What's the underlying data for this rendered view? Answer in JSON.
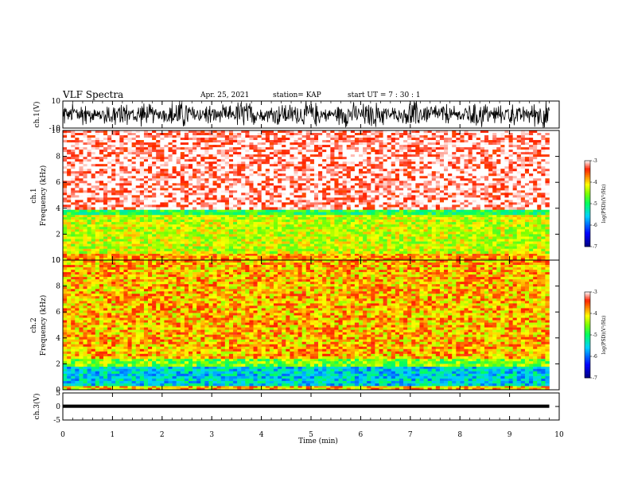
{
  "header": {
    "title": "VLF Spectra",
    "date": "Apr. 25, 2021",
    "station": "station= KAP",
    "start_time": "start  UT  =   7 : 30 : 1"
  },
  "chart_data": [
    {
      "type": "line",
      "panel": "ch1-waveform",
      "ylabel": "ch.1(V)",
      "ylim": [
        -10,
        10
      ],
      "yticks": [
        "10",
        "-10"
      ],
      "xlim": [
        0,
        10
      ],
      "series_color": "#000000",
      "description_values": {
        "signal_min": -10,
        "signal_max": 10
      }
    },
    {
      "type": "heatmap",
      "panel": "ch1-spectrogram",
      "ylabel": "ch.1\nFrequency (kHz)",
      "ylim": [
        0,
        10
      ],
      "yticks": [
        "0",
        "2",
        "4",
        "6",
        "8",
        "10"
      ],
      "xlim": [
        0,
        9.8
      ],
      "bands": [
        {
          "from_khz": 0,
          "to_khz": 0.5,
          "level": -3.8
        },
        {
          "from_khz": 0.5,
          "to_khz": 3.5,
          "level": -4.3
        },
        {
          "from_khz": 3.5,
          "to_khz": 3.9,
          "level": -4.9
        },
        {
          "from_khz": 3.9,
          "to_khz": 10,
          "level": -3.1
        }
      ],
      "colorbar": {
        "label": "log(PSD)(V²/Hz)",
        "min": -7,
        "max": -3,
        "ticks": [
          "-3",
          "-4",
          "-5",
          "-6",
          "-7"
        ]
      }
    },
    {
      "type": "heatmap",
      "panel": "ch2-spectrogram",
      "ylabel": "ch.2\nFrequency (kHz)",
      "ylim": [
        0,
        10
      ],
      "yticks": [
        "0",
        "2",
        "4",
        "6",
        "8",
        "10"
      ],
      "xlim": [
        0,
        9.8
      ],
      "bands": [
        {
          "from_khz": 0,
          "to_khz": 0.3,
          "level": -3.9
        },
        {
          "from_khz": 0.3,
          "to_khz": 1.8,
          "level": -5.5
        },
        {
          "from_khz": 1.8,
          "to_khz": 2.4,
          "level": -4.6
        },
        {
          "from_khz": 2.4,
          "to_khz": 10,
          "level": -3.9
        }
      ],
      "colorbar": {
        "label": "log(PSD)(V²/Hz)",
        "min": -7,
        "max": -3,
        "ticks": [
          "-3",
          "-4",
          "-5",
          "-6",
          "-7"
        ]
      }
    },
    {
      "type": "line",
      "panel": "ch3-waveform",
      "ylabel": "ch.3(V)",
      "ylim": [
        -5,
        5
      ],
      "yticks": [
        "5",
        "0",
        "-5"
      ],
      "xlim": [
        0,
        10
      ],
      "band_from": -0.5,
      "band_to": 0.7,
      "series_color": "#000000"
    }
  ],
  "xaxis": {
    "label": "Time (min)",
    "ticks": [
      "0",
      "1",
      "2",
      "3",
      "4",
      "5",
      "6",
      "7",
      "8",
      "9",
      "10"
    ],
    "range": [
      0,
      10
    ]
  }
}
